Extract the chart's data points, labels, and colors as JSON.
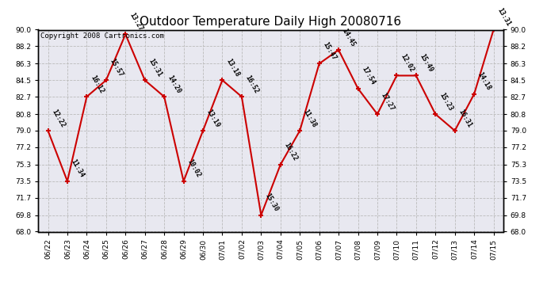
{
  "title": "Outdoor Temperature Daily High 20080716",
  "copyright": "Copyright 2008 Cartronics.com",
  "dates": [
    "06/22",
    "06/23",
    "06/24",
    "06/25",
    "06/26",
    "06/27",
    "06/28",
    "06/29",
    "06/30",
    "07/01",
    "07/02",
    "07/03",
    "07/04",
    "07/05",
    "07/06",
    "07/07",
    "07/08",
    "07/09",
    "07/10",
    "07/11",
    "07/12",
    "07/13",
    "07/14",
    "07/15"
  ],
  "values": [
    79.0,
    73.5,
    82.7,
    84.5,
    89.5,
    84.5,
    82.7,
    73.5,
    79.0,
    84.5,
    82.7,
    69.8,
    75.3,
    79.0,
    86.3,
    87.8,
    83.6,
    80.8,
    85.0,
    85.0,
    80.8,
    79.0,
    83.0,
    90.0
  ],
  "labels": [
    "12:22",
    "11:34",
    "16:12",
    "15:57",
    "13:27",
    "15:31",
    "14:20",
    "10:02",
    "13:19",
    "13:18",
    "16:52",
    "15:30",
    "16:22",
    "11:38",
    "15:47",
    "14:45",
    "17:54",
    "17:27",
    "12:02",
    "15:49",
    "15:23",
    "16:31",
    "14:18",
    "13:31"
  ],
  "ylim": [
    68.0,
    90.0
  ],
  "yticks": [
    68.0,
    69.8,
    71.7,
    73.5,
    75.3,
    77.2,
    79.0,
    80.8,
    82.7,
    84.5,
    86.3,
    88.2,
    90.0
  ],
  "line_color": "#cc0000",
  "fig_bg_color": "#ffffff",
  "plot_bg_color": "#e8e8f0",
  "grid_color": "#bbbbbb",
  "title_fontsize": 11,
  "label_fontsize": 6,
  "tick_fontsize": 6.5,
  "copyright_fontsize": 6.5
}
